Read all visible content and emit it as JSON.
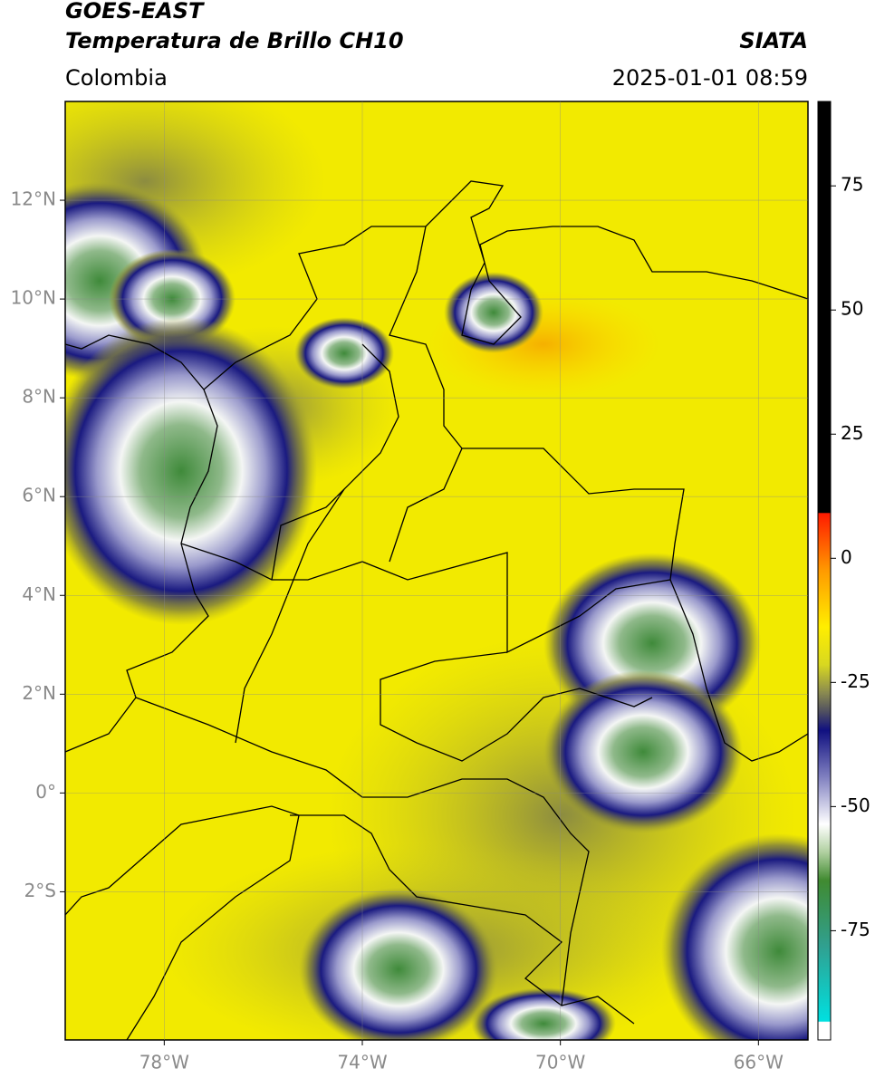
{
  "header": {
    "title": "GOES-EAST",
    "subtitle": "Temperatura de Brillo CH10",
    "source": "SIATA",
    "region": "Colombia",
    "datetime": "2025-01-01 08:59"
  },
  "map": {
    "xlim": [
      -80,
      -65
    ],
    "ylim": [
      -5,
      14
    ],
    "xticks": [
      {
        "value": -78,
        "label": "78°W"
      },
      {
        "value": -74,
        "label": "74°W"
      },
      {
        "value": -70,
        "label": "70°W"
      },
      {
        "value": -66,
        "label": "66°W"
      }
    ],
    "yticks": [
      {
        "value": 12,
        "label": "12°N"
      },
      {
        "value": 10,
        "label": "10°N"
      },
      {
        "value": 8,
        "label": "8°N"
      },
      {
        "value": 6,
        "label": "6°N"
      },
      {
        "value": 4,
        "label": "4°N"
      },
      {
        "value": 2,
        "label": "2°N"
      },
      {
        "value": 0,
        "label": "0°"
      },
      {
        "value": -2,
        "label": "2°S"
      }
    ]
  },
  "colorbar": {
    "lim": [
      -97,
      92
    ],
    "ticks": [
      75,
      50,
      25,
      0,
      -25,
      -50,
      -75
    ]
  }
}
